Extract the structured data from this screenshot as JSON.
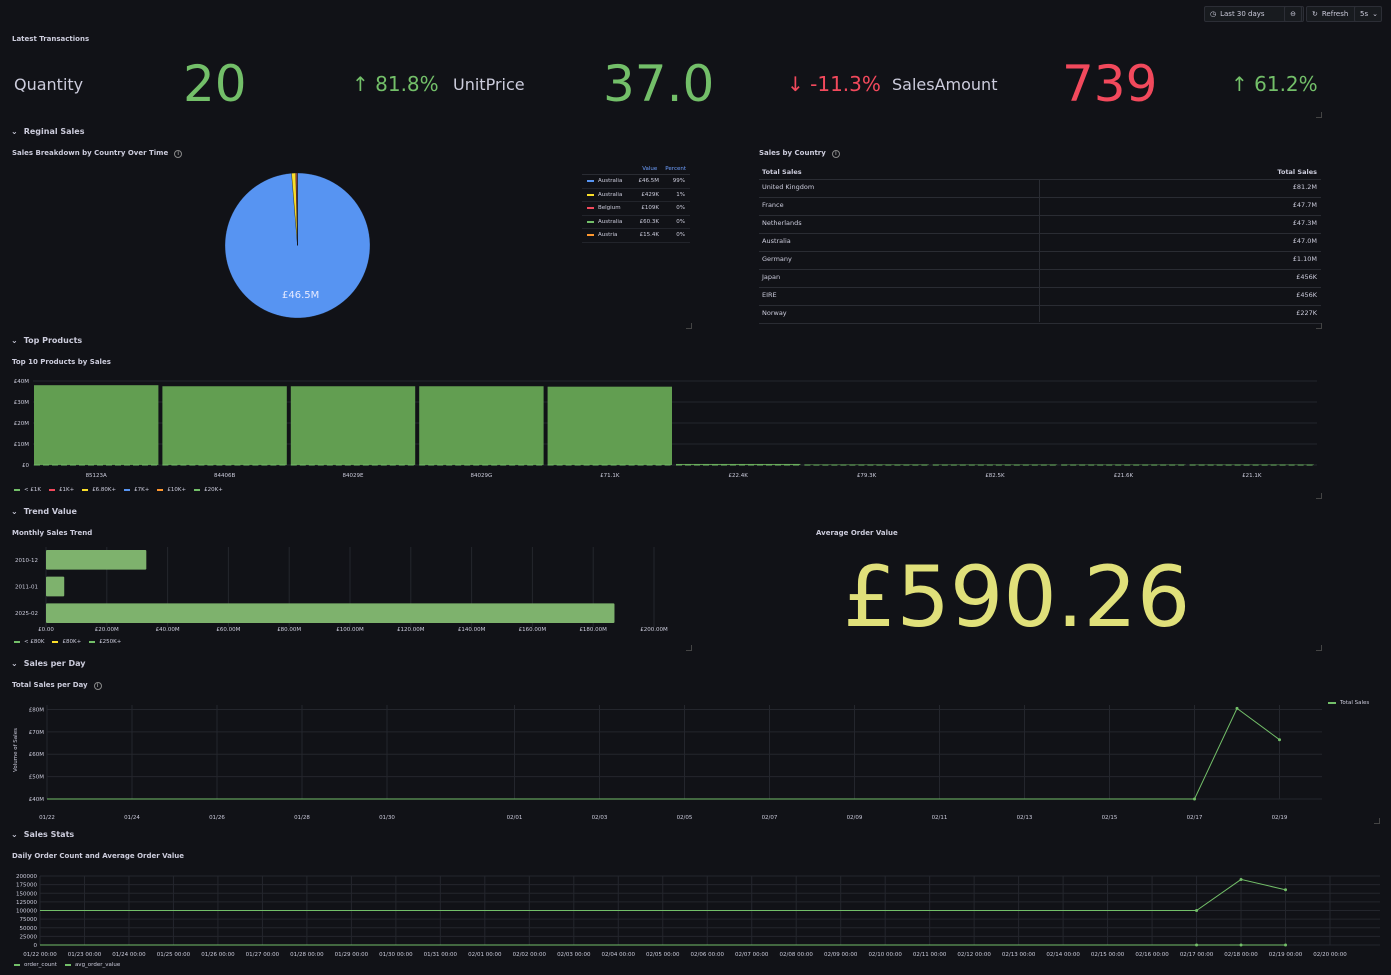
{
  "toolbar": {
    "time_range": "Last 30 days",
    "refresh_label": "Refresh",
    "refresh_interval": "5s"
  },
  "latest": {
    "title": "Latest Transactions",
    "stats": [
      {
        "label": "Quantity",
        "value": "20",
        "delta": "81.8%",
        "direction": "up",
        "color": "#73bf69"
      },
      {
        "label": "UnitPrice",
        "value": "37.0",
        "delta": "-11.3%",
        "direction": "down",
        "color": "#73bf69"
      },
      {
        "label": "SalesAmount",
        "value": "739",
        "delta": "61.2%",
        "direction": "up",
        "color": "#f2495c"
      }
    ]
  },
  "rows": {
    "regional": "Reginal Sales",
    "top_products": "Top Products",
    "trend": "Trend Value",
    "per_day": "Sales per Day",
    "stats": "Sales Stats"
  },
  "pie_panel": {
    "title": "Sales Breakdown by Country Over Time",
    "center_label": "£46.5M",
    "legend_headers": [
      "Value",
      "Percent"
    ],
    "legend": [
      {
        "name": "Australia",
        "value": "£46.5M",
        "percent": "99%",
        "color": "#5794f2"
      },
      {
        "name": "Australia",
        "value": "£429K",
        "percent": "1%",
        "color": "#fade2a"
      },
      {
        "name": "Belgium",
        "value": "£109K",
        "percent": "0%",
        "color": "#f2495c"
      },
      {
        "name": "Australia",
        "value": "£60.3K",
        "percent": "0%",
        "color": "#73bf69"
      },
      {
        "name": "Austria",
        "value": "£15.4K",
        "percent": "0%",
        "color": "#ff9830"
      }
    ]
  },
  "country_table": {
    "title": "Sales by Country",
    "headers": [
      "Total Sales",
      "Total Sales"
    ],
    "rows": [
      {
        "country": "United Kingdom",
        "sales": "£81.2M"
      },
      {
        "country": "France",
        "sales": "£47.7M"
      },
      {
        "country": "Netherlands",
        "sales": "£47.3M"
      },
      {
        "country": "Australia",
        "sales": "£47.0M"
      },
      {
        "country": "Germany",
        "sales": "£1.10M"
      },
      {
        "country": "Japan",
        "sales": "£456K"
      },
      {
        "country": "EIRE",
        "sales": "£456K"
      },
      {
        "country": "Norway",
        "sales": "£227K"
      }
    ]
  },
  "top_products_panel": {
    "title": "Top 10 Products by Sales",
    "legend": [
      {
        "name": "< £1K",
        "color": "#73bf69"
      },
      {
        "name": "£1K+",
        "color": "#f2495c"
      },
      {
        "name": "£6.80K+",
        "color": "#fade2a"
      },
      {
        "name": "£7K+",
        "color": "#5794f2"
      },
      {
        "name": "£10K+",
        "color": "#ff9830"
      },
      {
        "name": "£20K+",
        "color": "#73bf69"
      }
    ]
  },
  "monthly_panel": {
    "title": "Monthly Sales Trend",
    "legend": [
      {
        "name": "< £80K",
        "color": "#73bf69"
      },
      {
        "name": "£80K+",
        "color": "#fade2a"
      },
      {
        "name": "£250K+",
        "color": "#73bf69"
      }
    ]
  },
  "aov_panel": {
    "title": "Average Order Value",
    "value": "£590.26",
    "color": "#e0e07a"
  },
  "daily_panel": {
    "title": "Total Sales per Day",
    "legend": "Total Sales"
  },
  "stats_panel": {
    "title": "Daily Order Count and Average Order Value",
    "legend": [
      {
        "name": "order_count",
        "color": "#73bf69"
      },
      {
        "name": "avg_order_value",
        "color": "#73bf69"
      }
    ]
  },
  "chart_data": [
    {
      "type": "pie",
      "title": "Sales Breakdown by Country Over Time",
      "labels": [
        "Australia",
        "Australia",
        "Belgium",
        "Australia",
        "Austria"
      ],
      "values": [
        46.5,
        0.429,
        0.109,
        0.0603,
        0.0154
      ],
      "unit": "£M"
    },
    {
      "type": "bar",
      "title": "Top 10 Products by Sales",
      "categories": [
        "85123A",
        "84406B",
        "84029E",
        "84029G",
        "£71.1K",
        "£22.4K",
        "£79.3K",
        "£82.5K",
        "£21.6K",
        "£21.1K"
      ],
      "values": [
        38,
        37.5,
        37.5,
        37.5,
        37.3,
        0.5,
        0.25,
        0.22,
        0.2,
        0.2
      ],
      "ylabel": "",
      "ylim": [
        0,
        40
      ],
      "yticks": [
        "£0",
        "£10M",
        "£20M",
        "£30M",
        "£40M"
      ]
    },
    {
      "type": "bar",
      "orientation": "horizontal",
      "title": "Monthly Sales Trend",
      "categories": [
        "2010-12",
        "2011-01",
        "2025-02"
      ],
      "values": [
        33,
        6,
        187
      ],
      "xlim": [
        0,
        200
      ],
      "xticks": [
        "£0.00",
        "£20.00M",
        "£40.00M",
        "£60.00M",
        "£80.00M",
        "£100.00M",
        "£120.00M",
        "£140.00M",
        "£160.00M",
        "£180.00M",
        "£200.00M"
      ]
    },
    {
      "type": "line",
      "title": "Total Sales per Day",
      "ylabel": "Volume of Sales",
      "xticks": [
        "01/22",
        "01/24",
        "01/26",
        "01/28",
        "01/30",
        "02/01",
        "02/03",
        "02/05",
        "02/07",
        "02/09",
        "02/11",
        "02/13",
        "02/15",
        "02/17",
        "02/19"
      ],
      "yticks": [
        "£40M",
        "£50M",
        "£60M",
        "£70M",
        "£80M"
      ],
      "ylim": [
        40,
        82
      ],
      "series": [
        {
          "name": "Total Sales",
          "x": [
            "01/22",
            "02/17",
            "02/18",
            "02/19"
          ],
          "values": [
            40,
            40,
            80.5,
            66.5
          ]
        }
      ]
    },
    {
      "type": "line",
      "title": "Daily Order Count and Average Order Value",
      "yticks": [
        "0",
        "25000",
        "50000",
        "75000",
        "100000",
        "125000",
        "150000",
        "175000",
        "200000"
      ],
      "ylim": [
        0,
        200000
      ],
      "xticks": [
        "01/22 00:00",
        "01/23 00:00",
        "01/24 00:00",
        "01/25 00:00",
        "01/26 00:00",
        "01/27 00:00",
        "01/28 00:00",
        "01/29 00:00",
        "01/30 00:00",
        "01/31 00:00",
        "02/01 00:00",
        "02/02 00:00",
        "02/03 00:00",
        "02/04 00:00",
        "02/05 00:00",
        "02/06 00:00",
        "02/07 00:00",
        "02/08 00:00",
        "02/09 00:00",
        "02/10 00:00",
        "02/11 00:00",
        "02/12 00:00",
        "02/13 00:00",
        "02/14 00:00",
        "02/15 00:00",
        "02/16 00:00",
        "02/17 00:00",
        "02/18 00:00",
        "02/19 00:00",
        "02/20 00:00"
      ],
      "series": [
        {
          "name": "order_count",
          "x": [
            "01/22 00:00",
            "02/17 00:00",
            "02/18 00:00",
            "02/19 00:00"
          ],
          "values": [
            0,
            0,
            0,
            0
          ]
        },
        {
          "name": "avg_order_value",
          "x": [
            "01/22 00:00",
            "02/17 00:00",
            "02/18 00:00",
            "02/19 00:00"
          ],
          "values": [
            100000,
            100000,
            190000,
            160000
          ]
        }
      ]
    }
  ]
}
